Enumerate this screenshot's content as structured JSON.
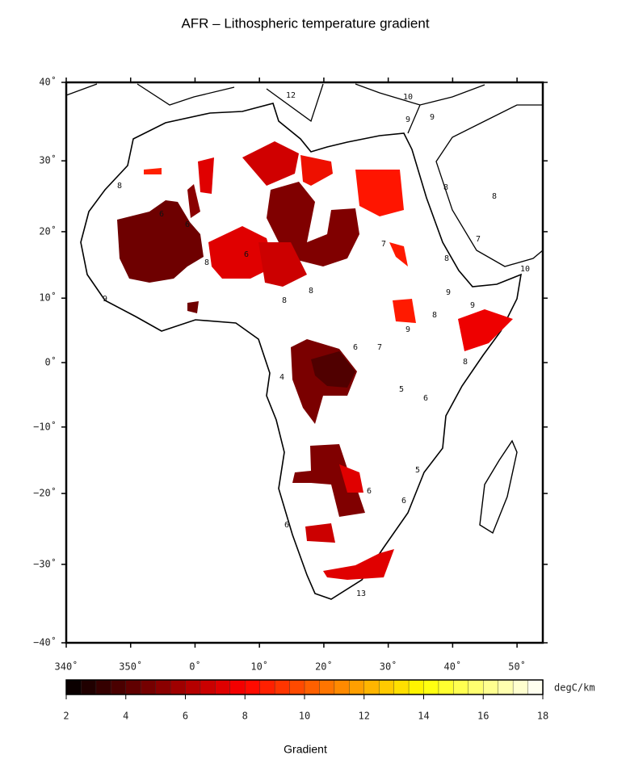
{
  "map": {
    "title": "AFR – Lithospheric temperature gradient",
    "projection": "mercator",
    "xlim": [
      -20,
      54
    ],
    "ylim": [
      -40,
      40
    ],
    "lat_ticks": [
      {
        "value": 40,
        "label": "40˚"
      },
      {
        "value": 30,
        "label": "30˚"
      },
      {
        "value": 20,
        "label": "20˚"
      },
      {
        "value": 10,
        "label": "10˚"
      },
      {
        "value": 0,
        "label": "0˚"
      },
      {
        "value": -10,
        "label": "−10˚"
      },
      {
        "value": -20,
        "label": "−20˚"
      },
      {
        "value": -30,
        "label": "−30˚"
      },
      {
        "value": -40,
        "label": "−40˚"
      }
    ],
    "lon_ticks": [
      {
        "value": -20,
        "label": "340˚"
      },
      {
        "value": -10,
        "label": "350˚"
      },
      {
        "value": 0,
        "label": "0˚"
      },
      {
        "value": 10,
        "label": "10˚"
      },
      {
        "value": 20,
        "label": "20˚"
      },
      {
        "value": 30,
        "label": "30˚"
      },
      {
        "value": 40,
        "label": "40˚"
      },
      {
        "value": 50,
        "label": "50˚"
      }
    ],
    "colorbar": {
      "range": [
        2,
        18
      ],
      "ticks": [
        2,
        4,
        6,
        8,
        10,
        12,
        14,
        16,
        18
      ],
      "unit": "degC/km",
      "label": "Gradient",
      "colormap": "hot"
    },
    "contour_labels": [
      "8",
      "6",
      "6",
      "8",
      "6",
      "8",
      "8",
      "7",
      "8",
      "8",
      "7",
      "9",
      "8",
      "9",
      "8",
      "9",
      "6",
      "7",
      "5",
      "6",
      "8",
      "4",
      "6",
      "5",
      "6",
      "6",
      "13",
      "12",
      "10",
      "9",
      "9",
      "10",
      "9"
    ]
  }
}
